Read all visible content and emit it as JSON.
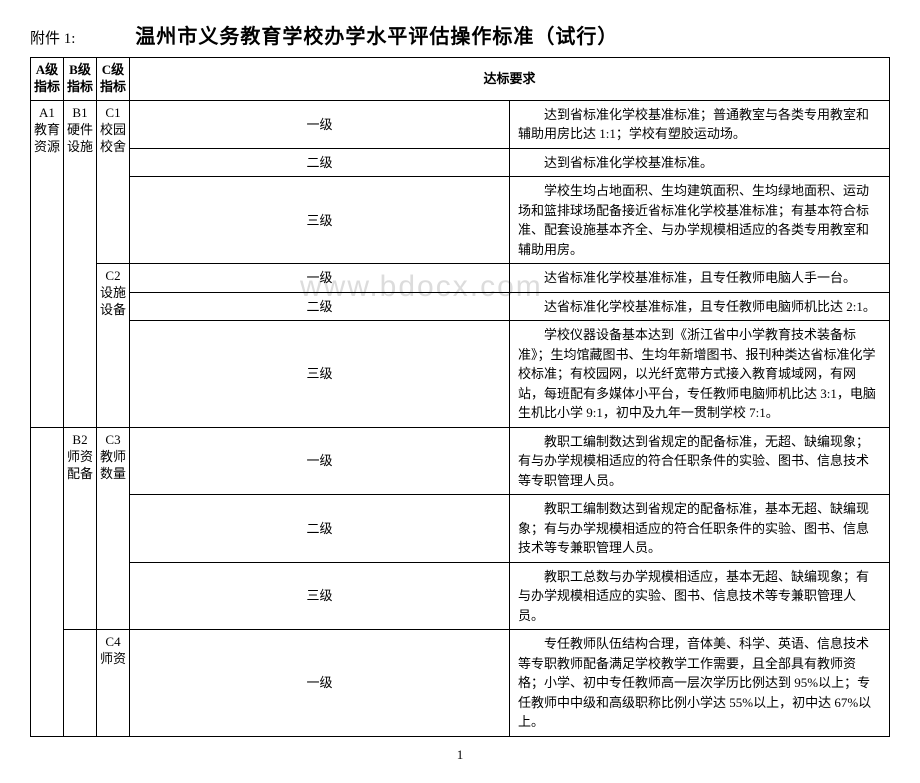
{
  "header": {
    "attachment": "附件 1:",
    "title": "温州市义务教育学校办学水平评估操作标准（试行）"
  },
  "columns": {
    "a": "A级指标",
    "b": "B级指标",
    "c": "C级指标",
    "req": "达标要求"
  },
  "a1": "A1教育资源",
  "b1": "B1硬件设施",
  "b2": "B2师资配备",
  "c1": "C1校园校舍",
  "c2": "C2设施设备",
  "c3": "C3教师数量",
  "c4": "C4师资",
  "lv1": "一级",
  "lv2": "二级",
  "lv3": "三级",
  "rows": {
    "c1_1": "达到省标准化学校基准标准；普通教室与各类专用教室和辅助用房比达 1:1；学校有塑胶运动场。",
    "c1_2": "达到省标准化学校基准标准。",
    "c1_3": "学校生均占地面积、生均建筑面积、生均绿地面积、运动场和篮排球场配备接近省标准化学校基准标准；有基本符合标准、配套设施基本齐全、与办学规模相适应的各类专用教室和辅助用房。",
    "c2_1": "达省标准化学校基准标准，且专任教师电脑人手一台。",
    "c2_2": "达省标准化学校基准标准，且专任教师电脑师机比达 2:1。",
    "c2_3": "学校仪器设备基本达到《浙江省中小学教育技术装备标准》；生均馆藏图书、生均年新增图书、报刊种类达省标准化学校标准；有校园网，以光纤宽带方式接入教育城域网，有网站，每班配有多媒体小平台，专任教师电脑师机比达 3:1，电脑生机比小学 9:1，初中及九年一贯制学校 7:1。",
    "c3_1": "教职工编制数达到省规定的配备标准，无超、缺编现象；有与办学规模相适应的符合任职条件的实验、图书、信息技术等专职管理人员。",
    "c3_2": "教职工编制数达到省规定的配备标准，基本无超、缺编现象；有与办学规模相适应的符合任职条件的实验、图书、信息技术等专兼职管理人员。",
    "c3_3": "教职工总数与办学规模相适应，基本无超、缺编现象；有与办学规模相适应的实验、图书、信息技术等专兼职管理人员。",
    "c4_1": "专任教师队伍结构合理，音体美、科学、英语、信息技术等专职教师配备满足学校教学工作需要，且全部具有教师资格；小学、初中专任教师高一层次学历比例达到 95%以上；专任教师中中级和高级职称比例小学达 55%以上，初中达 67%以上。"
  },
  "watermark": "www.bdocx.com",
  "page": "1"
}
